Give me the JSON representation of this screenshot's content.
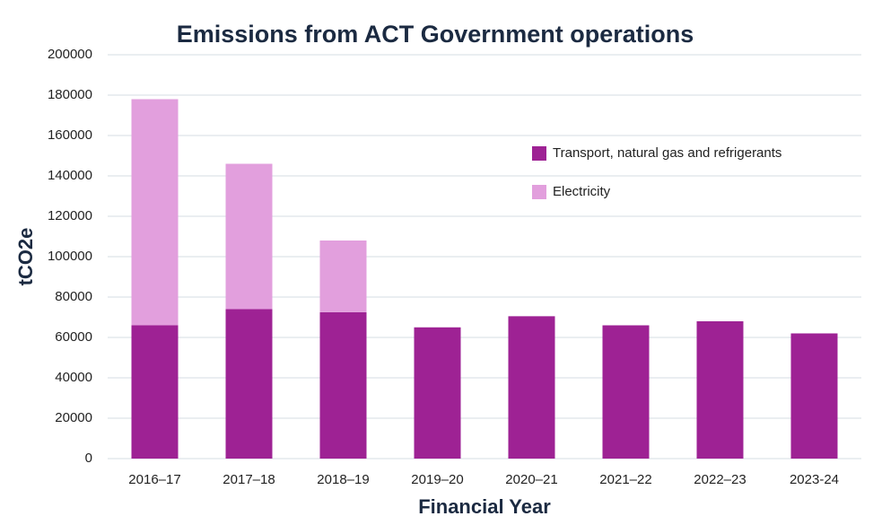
{
  "chart_data": {
    "type": "stacked_bar",
    "title": "Emissions from ACT Government operations",
    "x_label": "Financial Year",
    "y_label": "tCO2e",
    "categories": [
      "2016–17",
      "2017–18",
      "2018–19",
      "2019–20",
      "2020–21",
      "2021–22",
      "2022–23",
      "2023-24"
    ],
    "series": [
      {
        "name": "Transport, natural gas and refrigerants",
        "color": "#9e2294",
        "values": [
          66000,
          74000,
          72500,
          65000,
          70500,
          66000,
          68000,
          62000
        ]
      },
      {
        "name": "Electricity",
        "color": "#e29fdd",
        "values": [
          112000,
          72000,
          35500,
          0,
          0,
          0,
          0,
          0
        ]
      }
    ],
    "ylim": [
      0,
      200000
    ],
    "yticks": [
      0,
      20000,
      40000,
      60000,
      80000,
      100000,
      120000,
      140000,
      160000,
      180000,
      200000
    ],
    "grid": true,
    "legend": "upper right"
  }
}
